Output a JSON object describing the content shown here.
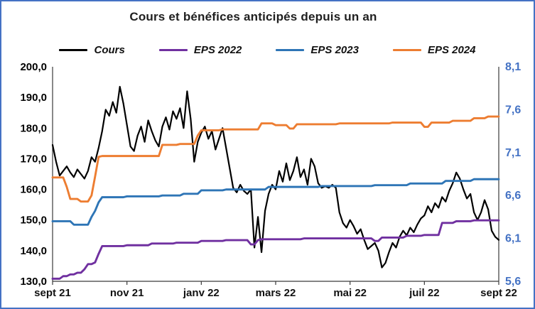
{
  "chart_data": {
    "type": "line",
    "title": "Cours et bénéfices anticipés depuis un an",
    "x_tick_labels": [
      "sept 21",
      "nov 21",
      "janv 22",
      "mars 22",
      "mai 22",
      "juil 22",
      "sept 22"
    ],
    "left_axis": {
      "min": 130,
      "max": 200,
      "tick_labels": [
        "130,0",
        "140,0",
        "150,0",
        "160,0",
        "170,0",
        "180,0",
        "190,0",
        "200,0"
      ],
      "color": "#000000"
    },
    "right_axis": {
      "min": 5.6,
      "max": 8.1,
      "tick_labels": [
        "5,6",
        "6,1",
        "6,6",
        "7,1",
        "7,6",
        "8,1"
      ],
      "color": "#4472C4"
    },
    "frame_color": "#4472C4",
    "legend_position": "top",
    "grid": false,
    "series": [
      {
        "name": "Cours",
        "color": "#000000",
        "axis": "left",
        "values": [
          174.5,
          169,
          164.5,
          166,
          167.5,
          165.5,
          164,
          166.5,
          165,
          163.5,
          166,
          170.5,
          169,
          173.5,
          179,
          186,
          184,
          188.5,
          185,
          193.5,
          188,
          181,
          174,
          172.5,
          177.5,
          180.5,
          175.5,
          182.5,
          179,
          176,
          174,
          180.5,
          183.5,
          179.5,
          185.5,
          183,
          186.5,
          180,
          192,
          183,
          169,
          175.5,
          178.5,
          180.5,
          176.5,
          179,
          173,
          176.5,
          180,
          173.5,
          167,
          160.5,
          159,
          161.5,
          159.5,
          158.5,
          160,
          141,
          151,
          139.5,
          153,
          158.5,
          161.5,
          160,
          166,
          162.5,
          168.5,
          163,
          166,
          170.5,
          164,
          166.5,
          161.5,
          170,
          167.5,
          162,
          160.5,
          161,
          160.5,
          161.5,
          160.5,
          152.5,
          149,
          147.5,
          150,
          148,
          145.5,
          147,
          143.5,
          140.5,
          141.5,
          142.5,
          140,
          134.5,
          136,
          139.5,
          142.5,
          141,
          144.5,
          146.5,
          145,
          147.5,
          146,
          148.5,
          150.5,
          151.5,
          154.5,
          152.5,
          155.5,
          154,
          157.5,
          156,
          159.5,
          162,
          165.5,
          163.5,
          160,
          157,
          158.5,
          152.5,
          150,
          152.5,
          156.5,
          153.5,
          146.5,
          144.5,
          143.5
        ]
      },
      {
        "name": "EPS 2022",
        "color": "#7030A0",
        "axis": "right",
        "values": [
          5.63,
          5.63,
          5.63,
          5.66,
          5.66,
          5.68,
          5.68,
          5.7,
          5.7,
          5.74,
          5.8,
          5.8,
          5.82,
          5.92,
          6.01,
          6.01,
          6.01,
          6.01,
          6.01,
          6.01,
          6.01,
          6.02,
          6.02,
          6.02,
          6.02,
          6.02,
          6.02,
          6.02,
          6.04,
          6.04,
          6.04,
          6.04,
          6.04,
          6.04,
          6.04,
          6.05,
          6.05,
          6.05,
          6.05,
          6.05,
          6.05,
          6.05,
          6.07,
          6.07,
          6.07,
          6.07,
          6.07,
          6.07,
          6.07,
          6.08,
          6.08,
          6.08,
          6.08,
          6.08,
          6.08,
          6.08,
          6.03,
          6.03,
          6.08,
          6.09,
          6.09,
          6.09,
          6.09,
          6.09,
          6.09,
          6.09,
          6.09,
          6.09,
          6.09,
          6.09,
          6.09,
          6.1,
          6.1,
          6.1,
          6.1,
          6.1,
          6.1,
          6.1,
          6.1,
          6.1,
          6.1,
          6.1,
          6.1,
          6.1,
          6.1,
          6.1,
          6.1,
          6.1,
          6.1,
          6.1,
          6.1,
          6.07,
          6.07,
          6.11,
          6.11,
          6.11,
          6.11,
          6.11,
          6.11,
          6.11,
          6.13,
          6.13,
          6.13,
          6.13,
          6.13,
          6.14,
          6.14,
          6.14,
          6.14,
          6.14,
          6.28,
          6.28,
          6.28,
          6.28,
          6.3,
          6.3,
          6.3,
          6.3,
          6.3,
          6.31,
          6.31,
          6.31,
          6.31,
          6.31,
          6.31,
          6.31,
          6.31
        ]
      },
      {
        "name": "EPS 2023",
        "color": "#2E75B6",
        "axis": "right",
        "values": [
          6.3,
          6.3,
          6.3,
          6.3,
          6.3,
          6.3,
          6.26,
          6.26,
          6.26,
          6.26,
          6.26,
          6.35,
          6.42,
          6.52,
          6.58,
          6.58,
          6.58,
          6.58,
          6.58,
          6.58,
          6.58,
          6.59,
          6.59,
          6.59,
          6.59,
          6.59,
          6.59,
          6.59,
          6.59,
          6.59,
          6.59,
          6.6,
          6.6,
          6.6,
          6.6,
          6.6,
          6.6,
          6.62,
          6.62,
          6.62,
          6.62,
          6.62,
          6.66,
          6.66,
          6.66,
          6.66,
          6.66,
          6.66,
          6.66,
          6.67,
          6.67,
          6.67,
          6.67,
          6.67,
          6.67,
          6.67,
          6.67,
          6.67,
          6.67,
          6.67,
          6.67,
          6.7,
          6.7,
          6.7,
          6.7,
          6.7,
          6.7,
          6.7,
          6.7,
          6.7,
          6.7,
          6.7,
          6.7,
          6.7,
          6.7,
          6.7,
          6.71,
          6.71,
          6.71,
          6.71,
          6.71,
          6.71,
          6.71,
          6.71,
          6.71,
          6.71,
          6.71,
          6.71,
          6.71,
          6.71,
          6.71,
          6.72,
          6.72,
          6.72,
          6.72,
          6.72,
          6.72,
          6.72,
          6.72,
          6.72,
          6.72,
          6.74,
          6.74,
          6.74,
          6.74,
          6.74,
          6.74,
          6.74,
          6.74,
          6.74,
          6.74,
          6.77,
          6.77,
          6.77,
          6.77,
          6.77,
          6.77,
          6.77,
          6.77,
          6.79,
          6.79,
          6.79,
          6.79,
          6.79,
          6.79,
          6.79,
          6.79
        ]
      },
      {
        "name": "EPS 2024",
        "color": "#ED7D31",
        "axis": "right",
        "values": [
          6.81,
          6.81,
          6.81,
          6.81,
          6.7,
          6.56,
          6.56,
          6.56,
          6.53,
          6.53,
          6.53,
          6.6,
          6.82,
          7.05,
          7.06,
          7.06,
          7.06,
          7.06,
          7.06,
          7.06,
          7.06,
          7.06,
          7.06,
          7.06,
          7.06,
          7.06,
          7.06,
          7.06,
          7.06,
          7.06,
          7.06,
          7.19,
          7.19,
          7.19,
          7.19,
          7.19,
          7.2,
          7.2,
          7.2,
          7.2,
          7.2,
          7.3,
          7.36,
          7.36,
          7.36,
          7.36,
          7.36,
          7.36,
          7.37,
          7.37,
          7.37,
          7.37,
          7.37,
          7.37,
          7.37,
          7.37,
          7.37,
          7.37,
          7.37,
          7.44,
          7.44,
          7.44,
          7.44,
          7.42,
          7.42,
          7.42,
          7.42,
          7.38,
          7.38,
          7.43,
          7.43,
          7.43,
          7.43,
          7.43,
          7.43,
          7.43,
          7.43,
          7.43,
          7.43,
          7.43,
          7.43,
          7.44,
          7.44,
          7.44,
          7.44,
          7.44,
          7.44,
          7.44,
          7.44,
          7.44,
          7.44,
          7.44,
          7.44,
          7.44,
          7.44,
          7.44,
          7.45,
          7.45,
          7.45,
          7.45,
          7.45,
          7.45,
          7.45,
          7.45,
          7.45,
          7.4,
          7.4,
          7.45,
          7.45,
          7.45,
          7.45,
          7.45,
          7.45,
          7.47,
          7.47,
          7.47,
          7.47,
          7.47,
          7.47,
          7.5,
          7.5,
          7.5,
          7.5,
          7.52,
          7.52,
          7.52,
          7.52
        ]
      }
    ]
  }
}
